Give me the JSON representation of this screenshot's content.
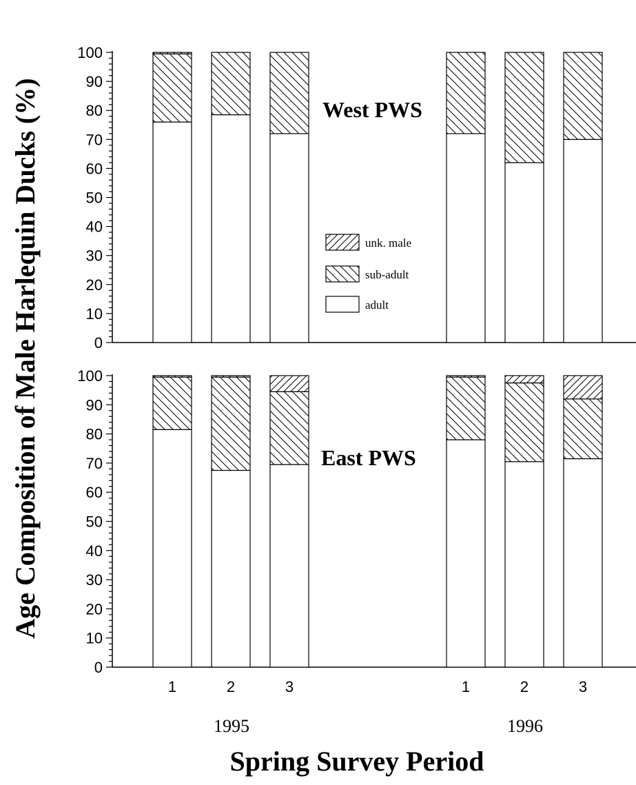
{
  "chart_data": {
    "type": "bar",
    "stacked": true,
    "ylabel": "Age Composition of Male Harlequin Ducks (%)",
    "xlabel": "Spring Survey Period",
    "ylim": [
      0,
      100
    ],
    "yticks": [
      "0",
      "10",
      "20",
      "30",
      "40",
      "50",
      "60",
      "70",
      "80",
      "90",
      "100"
    ],
    "period_labels": [
      "1",
      "2",
      "3",
      "1",
      "2",
      "3"
    ],
    "year_labels": [
      "1995",
      "1996"
    ],
    "legend": {
      "placement": "inside top panel, center",
      "entries": [
        "unk. male",
        "sub-adult",
        "adult"
      ]
    },
    "panels": [
      {
        "title": "West PWS",
        "categories": [
          "1995-1",
          "1995-2",
          "1995-3",
          "1996-1",
          "1996-2",
          "1996-3"
        ],
        "series": [
          {
            "name": "adult",
            "values": [
              76,
              78.5,
              72,
              72,
              62,
              70
            ]
          },
          {
            "name": "sub-adult",
            "values": [
              23.5,
              21.5,
              28,
              28,
              38,
              30
            ]
          },
          {
            "name": "unk. male",
            "values": [
              0.5,
              0,
              0,
              0,
              0,
              0
            ]
          }
        ]
      },
      {
        "title": "East PWS",
        "categories": [
          "1995-1",
          "1995-2",
          "1995-3",
          "1996-1",
          "1996-2",
          "1996-3"
        ],
        "series": [
          {
            "name": "adult",
            "values": [
              81.5,
              67.5,
              69.5,
              78,
              70.5,
              71.5
            ]
          },
          {
            "name": "sub-adult",
            "values": [
              18,
              32,
              25,
              21.5,
              27,
              20.5
            ]
          },
          {
            "name": "unk. male",
            "values": [
              0.5,
              0.5,
              5.5,
              0.5,
              2.5,
              8
            ]
          }
        ]
      }
    ]
  }
}
